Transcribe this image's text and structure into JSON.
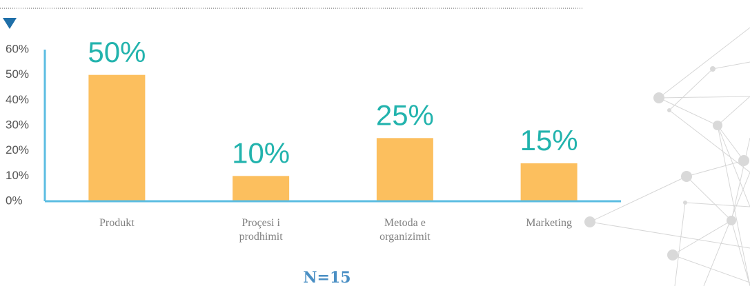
{
  "chart_data": {
    "type": "bar",
    "categories": [
      "Produkt",
      "Proçesi i prodhimit",
      "Metoda e organizimit",
      "Marketing"
    ],
    "values": [
      50,
      10,
      25,
      15
    ],
    "value_labels": [
      "50%",
      "10%",
      "25%",
      "15%"
    ],
    "color": "#fcbf5e",
    "ylim": [
      0,
      60
    ],
    "yticks": [
      {
        "value": 0,
        "label": "0%"
      },
      {
        "value": 10,
        "label": "10%"
      },
      {
        "value": 20,
        "label": "20%"
      },
      {
        "value": 30,
        "label": "30%"
      },
      {
        "value": 40,
        "label": "40%"
      },
      {
        "value": 50,
        "label": "50%"
      },
      {
        "value": 60,
        "label": "60%"
      }
    ],
    "annotation": "N=15"
  }
}
